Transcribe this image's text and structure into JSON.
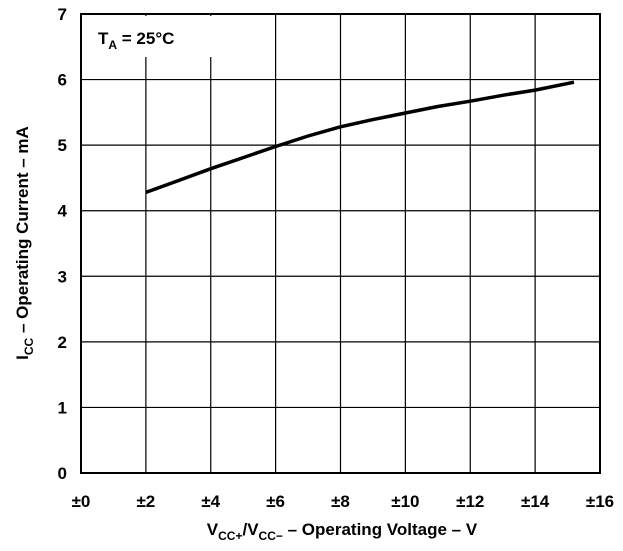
{
  "chart_data": {
    "type": "line",
    "grid": true,
    "xlim": [
      0,
      16
    ],
    "ylim": [
      0,
      7
    ],
    "x_ticks": [
      0,
      2,
      4,
      6,
      8,
      10,
      12,
      14,
      16
    ],
    "x_tick_labels": [
      "±0",
      "±2",
      "±4",
      "±6",
      "±8",
      "±10",
      "±12",
      "±14",
      "±16"
    ],
    "y_ticks": [
      0,
      1,
      2,
      3,
      4,
      5,
      6,
      7
    ],
    "y_tick_labels": [
      "0",
      "1",
      "2",
      "3",
      "4",
      "5",
      "6",
      "7"
    ],
    "xlabel": {
      "pre": "V",
      "sub1": "CC+",
      "mid": "/V",
      "sub2": "CC−",
      "post": " – Operating Voltage – V"
    },
    "ylabel": {
      "pre": "I",
      "sub": "CC",
      "post": " – Operating Current – mA"
    },
    "annotation": {
      "pre": "T",
      "sub": "A",
      "post": " = 25°C"
    },
    "series": [
      {
        "x": [
          2,
          3,
          4,
          5,
          6,
          7,
          8,
          9,
          10,
          11,
          12,
          13,
          14,
          15.2
        ],
        "y": [
          4.28,
          4.46,
          4.64,
          4.81,
          4.98,
          5.14,
          5.28,
          5.39,
          5.49,
          5.59,
          5.67,
          5.76,
          5.84,
          5.96
        ]
      }
    ]
  }
}
